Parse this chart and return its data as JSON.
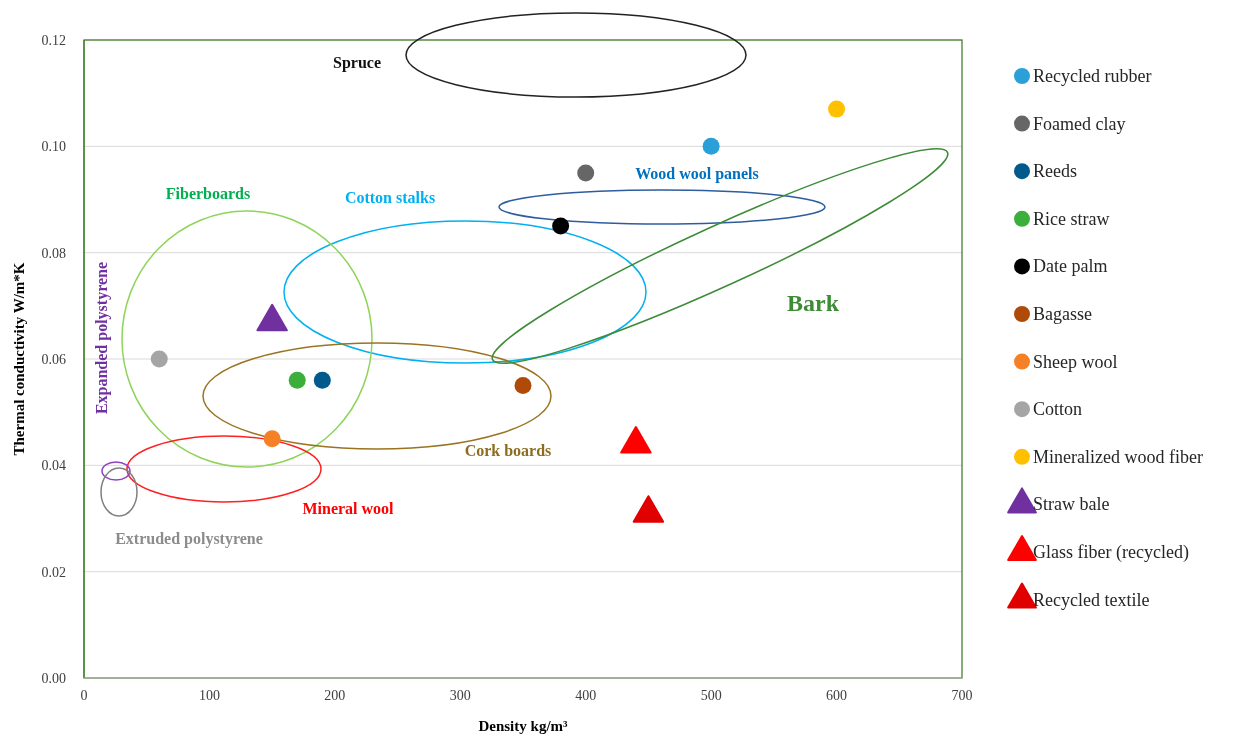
{
  "chart_data": {
    "type": "scatter",
    "xlabel": "Density kg/m³",
    "ylabel": "Thermal conductivity W/m*K",
    "xlim": [
      0,
      700
    ],
    "xticks": [
      0,
      100,
      200,
      300,
      400,
      500,
      600,
      700
    ],
    "ylim": [
      0,
      0.12
    ],
    "yticks": [
      {
        "value": 0,
        "label": "0.00"
      },
      {
        "value": 0.02,
        "label": "0.02"
      },
      {
        "value": 0.04,
        "label": "0.04"
      },
      {
        "value": 0.06,
        "label": "0.06"
      },
      {
        "value": 0.08,
        "label": "0.08"
      },
      {
        "value": 0.1,
        "label": "0.10"
      },
      {
        "value": 0.12,
        "label": "0.12"
      }
    ],
    "grid": "y",
    "legend": "right",
    "annotations": [
      "Spruce",
      "Wood wool panels",
      "Cotton stalks",
      "Fiberboards",
      "Cork boards",
      "Mineral wool",
      "Expanded polystyrene",
      "Extruded polystyrene",
      "Bark"
    ],
    "series": [
      {
        "name": "Recycled rubber",
        "marker": "circle",
        "color": "#2a9fd8",
        "x": [
          500
        ],
        "values": [
          0.1
        ]
      },
      {
        "name": "Foamed clay",
        "marker": "circle",
        "color": "#666666",
        "x": [
          400
        ],
        "values": [
          0.095
        ]
      },
      {
        "name": "Reeds",
        "marker": "circle",
        "color": "#005a8c",
        "x": [
          190
        ],
        "values": [
          0.056
        ]
      },
      {
        "name": "Rice straw",
        "marker": "circle",
        "color": "#3cae3c",
        "x": [
          170
        ],
        "values": [
          0.056
        ]
      },
      {
        "name": "Date palm",
        "marker": "circle",
        "color": "#000000",
        "x": [
          380
        ],
        "values": [
          0.085
        ]
      },
      {
        "name": "Bagasse",
        "marker": "circle",
        "color": "#b04a08",
        "x": [
          350
        ],
        "values": [
          0.055
        ]
      },
      {
        "name": "Sheep wool",
        "marker": "circle",
        "color": "#f58025",
        "x": [
          150
        ],
        "values": [
          0.045
        ]
      },
      {
        "name": "Cotton",
        "marker": "circle",
        "color": "#a5a5a5",
        "x": [
          60
        ],
        "values": [
          0.06
        ]
      },
      {
        "name": "Mineralized wood fiber",
        "marker": "circle",
        "color": "#ffc000",
        "x": [
          600
        ],
        "values": [
          0.107
        ]
      },
      {
        "name": "Straw bale",
        "marker": "triangle",
        "color": "#7030a0",
        "x": [
          150
        ],
        "values": [
          0.067
        ]
      },
      {
        "name": "Glass fiber (recycled)",
        "marker": "triangle",
        "color": "#ff0000",
        "x": [
          440
        ],
        "values": [
          0.044
        ]
      },
      {
        "name": "Recycled textile",
        "marker": "triangle",
        "color": "#e00000",
        "x": [
          450
        ],
        "values": [
          0.031
        ]
      }
    ]
  }
}
